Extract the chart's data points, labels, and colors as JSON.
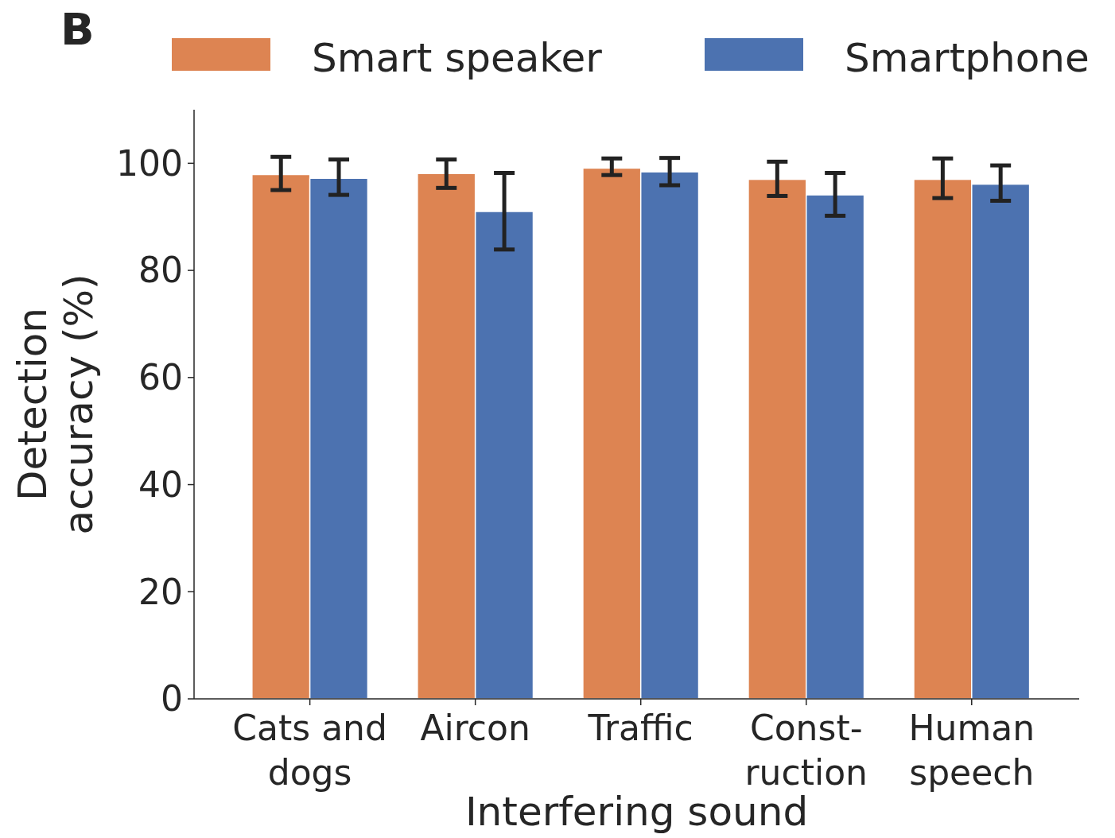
{
  "chart_data": {
    "type": "bar",
    "title": "B",
    "xlabel": "Interfering sound",
    "ylabel": "Detection\naccuracy (%)",
    "categories": [
      "Cats and\ndogs",
      "Aircon",
      "Traffic",
      "Const-\nruction",
      "Human\nspeech"
    ],
    "series": [
      {
        "name": "Smart speaker",
        "color": "#dd8452",
        "values": [
          97.9,
          98.1,
          99.1,
          97.0,
          97.0
        ],
        "errors": [
          [
            95.0,
            101.2
          ],
          [
            95.4,
            100.7
          ],
          [
            97.8,
            100.9
          ],
          [
            93.9,
            100.3
          ],
          [
            93.5,
            100.9
          ]
        ]
      },
      {
        "name": "Smartphone",
        "color": "#4c72b0",
        "values": [
          97.2,
          91.0,
          98.4,
          94.1,
          96.1
        ],
        "errors": [
          [
            94.1,
            100.7
          ],
          [
            83.9,
            98.2
          ],
          [
            95.9,
            101.0
          ],
          [
            90.2,
            98.2
          ],
          [
            93.0,
            99.6
          ]
        ]
      }
    ],
    "ylim": [
      0,
      110
    ],
    "yticks": [
      0,
      20,
      40,
      60,
      80,
      100
    ],
    "grid": false,
    "legend": "top"
  }
}
